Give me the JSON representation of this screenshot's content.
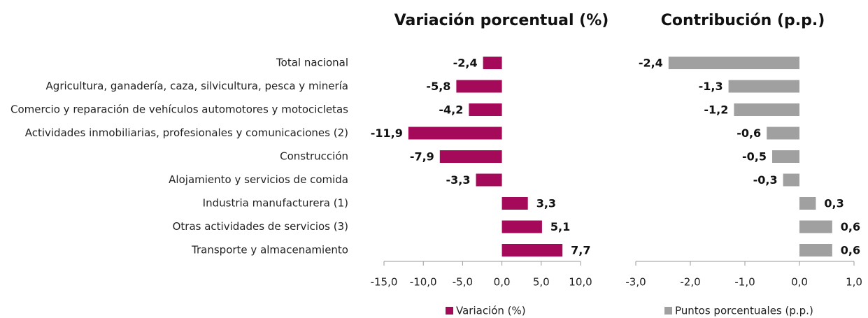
{
  "chart_data": [
    {
      "type": "barh",
      "title": "Variación porcentual (%)",
      "categories": [
        "Total nacional",
        "Agricultura, ganadería, caza, silvicultura, pesca y minería",
        "Comercio y reparación de vehículos automotores y motocicletas",
        "Actividades inmobiliarias, profesionales y comunicaciones (2)",
        "Construcción",
        "Alojamiento y servicios de comida",
        "Industria manufacturera (1)",
        "Otras actividades de servicios (3)",
        "Transporte y almacenamiento"
      ],
      "series": [
        {
          "name": "Variación (%)",
          "color": "#a50a5a",
          "values": [
            -2.4,
            -5.8,
            -4.2,
            -11.9,
            -7.9,
            -3.3,
            3.3,
            5.1,
            7.7
          ],
          "value_labels": [
            "-2,4",
            "-5,8",
            "-4,2",
            "-11,9",
            "-7,9",
            "-3,3",
            "3,3",
            "5,1",
            "7,7"
          ]
        }
      ],
      "xlim": [
        -15,
        10
      ],
      "xticks": [
        {
          "value": -15,
          "label": "-15,0"
        },
        {
          "value": -10,
          "label": "-10,0"
        },
        {
          "value": -5,
          "label": "-5,0"
        },
        {
          "value": 0,
          "label": "0,0"
        },
        {
          "value": 5,
          "label": "5,0"
        },
        {
          "value": 10,
          "label": "10,0"
        }
      ]
    },
    {
      "type": "barh",
      "title": "Contribución (p.p.)",
      "series": [
        {
          "name": "Puntos porcentuales (p.p.)",
          "color": "#a0a0a0",
          "values": [
            -2.4,
            -1.3,
            -1.2,
            -0.6,
            -0.5,
            -0.3,
            0.3,
            0.6,
            0.6
          ],
          "value_labels": [
            "-2,4",
            "-1,3",
            "-1,2",
            "-0,6",
            "-0,5",
            "-0,3",
            "0,3",
            "0,6",
            "0,6"
          ]
        }
      ],
      "xlim": [
        -3,
        1
      ],
      "xticks": [
        {
          "value": -3,
          "label": "-3,0"
        },
        {
          "value": -2,
          "label": "-2,0"
        },
        {
          "value": -1,
          "label": "-1,0"
        },
        {
          "value": 0,
          "label": "0,0"
        },
        {
          "value": 1,
          "label": "1,0"
        }
      ]
    }
  ]
}
